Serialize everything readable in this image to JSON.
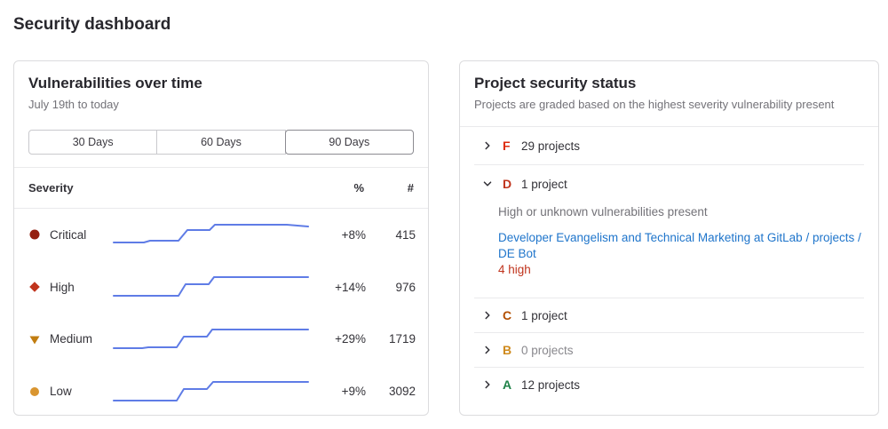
{
  "page": {
    "title": "Security dashboard"
  },
  "vuln_panel": {
    "title": "Vulnerabilities over time",
    "subtitle": "July 19th to today",
    "day_filters": [
      {
        "label": "30 Days",
        "selected": false
      },
      {
        "label": "60 Days",
        "selected": false
      },
      {
        "label": "90 Days",
        "selected": true
      }
    ],
    "table": {
      "severity_header": "Severity",
      "percent_header": "%",
      "count_header": "#",
      "spark_color": "#5f7ce6",
      "rows": [
        {
          "severity": "Critical",
          "icon": "severity-critical-icon",
          "icon_color": "#941f0f",
          "percent": "+8%",
          "count": "415",
          "spark_points": [
            [
              12,
              31
            ],
            [
              46,
              31
            ],
            [
              53,
              29
            ],
            [
              85,
              29
            ],
            [
              95,
              17
            ],
            [
              120,
              17
            ],
            [
              126,
              11
            ],
            [
              207,
              11
            ],
            [
              231,
              13
            ]
          ]
        },
        {
          "severity": "High",
          "icon": "severity-high-icon",
          "icon_color": "#c0341d",
          "percent": "+14%",
          "count": "976",
          "spark_points": [
            [
              12,
              32
            ],
            [
              85,
              32
            ],
            [
              93,
              19
            ],
            [
              119,
              19
            ],
            [
              125,
              11
            ],
            [
              231,
              11
            ]
          ]
        },
        {
          "severity": "Medium",
          "icon": "severity-medium-icon",
          "icon_color": "#c17d10",
          "percent": "+29%",
          "count": "1719",
          "spark_points": [
            [
              12,
              32
            ],
            [
              44,
              32
            ],
            [
              51,
              31
            ],
            [
              83,
              31
            ],
            [
              91,
              19
            ],
            [
              117,
              19
            ],
            [
              123,
              11
            ],
            [
              231,
              11
            ]
          ]
        },
        {
          "severity": "Low",
          "icon": "severity-low-icon",
          "icon_color": "#d99530",
          "percent": "+9%",
          "count": "3092",
          "spark_points": [
            [
              12,
              32
            ],
            [
              83,
              32
            ],
            [
              91,
              19
            ],
            [
              117,
              19
            ],
            [
              124,
              11
            ],
            [
              231,
              11
            ]
          ]
        }
      ]
    }
  },
  "status_panel": {
    "title": "Project security status",
    "subtitle": "Projects are graded based on the highest severity vulnerability present",
    "grades": [
      {
        "letter": "F",
        "color": "#dd2b0e",
        "count_label": "29 projects",
        "expanded": false
      },
      {
        "letter": "D",
        "color": "#c0341d",
        "count_label": "1 project",
        "expanded": true,
        "description": "High or unknown vulnerabilities present",
        "project_link": "Developer Evangelism and Technical Marketing at GitLab / projects / DE Bot",
        "link_color": "#1f75cb",
        "finding": "4 high",
        "finding_color": "#c0341d"
      },
      {
        "letter": "C",
        "color": "#b24e00",
        "count_label": "1 project",
        "expanded": false
      },
      {
        "letter": "B",
        "color": "#cf8a1c",
        "count_label": "0 projects",
        "expanded": false,
        "muted": true
      },
      {
        "letter": "A",
        "color": "#1f8248",
        "count_label": "12 projects",
        "expanded": false
      }
    ]
  }
}
